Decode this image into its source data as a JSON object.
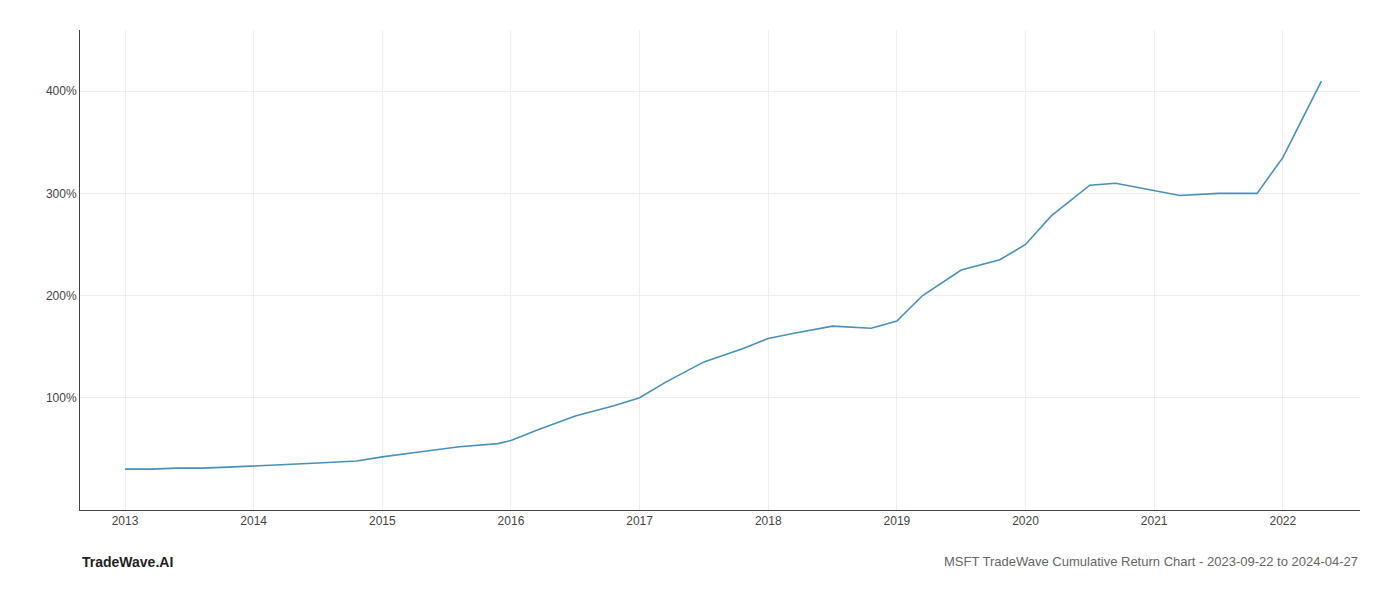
{
  "chart_data": {
    "type": "line",
    "title": "MSFT TradeWave Cumulative Return Chart - 2023-09-22 to 2024-04-27",
    "annotations": [
      "TradeWave.AI"
    ],
    "x": [
      2013.0,
      2013.2,
      2013.4,
      2013.6,
      2013.8,
      2014.0,
      2014.2,
      2014.5,
      2014.8,
      2015.0,
      2015.3,
      2015.6,
      2015.9,
      2016.0,
      2016.2,
      2016.5,
      2016.8,
      2017.0,
      2017.2,
      2017.5,
      2017.8,
      2018.0,
      2018.2,
      2018.5,
      2018.8,
      2019.0,
      2019.2,
      2019.5,
      2019.8,
      2020.0,
      2020.2,
      2020.5,
      2020.7,
      2021.0,
      2021.2,
      2021.5,
      2021.8,
      2022.0,
      2022.3
    ],
    "values": [
      30,
      30,
      31,
      31,
      32,
      33,
      34,
      36,
      38,
      42,
      47,
      52,
      55,
      58,
      68,
      82,
      92,
      100,
      115,
      135,
      148,
      158,
      163,
      170,
      168,
      175,
      200,
      225,
      235,
      250,
      278,
      308,
      310,
      303,
      298,
      300,
      300,
      335,
      410
    ],
    "color": "#4a90b8",
    "xlim": [
      2012.65,
      2022.6
    ],
    "xticks": [
      2013,
      2014,
      2015,
      2016,
      2017,
      2018,
      2019,
      2020,
      2021,
      2022
    ],
    "ylim": [
      -10,
      460
    ],
    "yticks": [
      {
        "value": 100,
        "label": "100%"
      },
      {
        "value": 200,
        "label": "200%"
      },
      {
        "value": 300,
        "label": "300%"
      },
      {
        "value": 400,
        "label": "400%"
      }
    ],
    "grid": true
  }
}
